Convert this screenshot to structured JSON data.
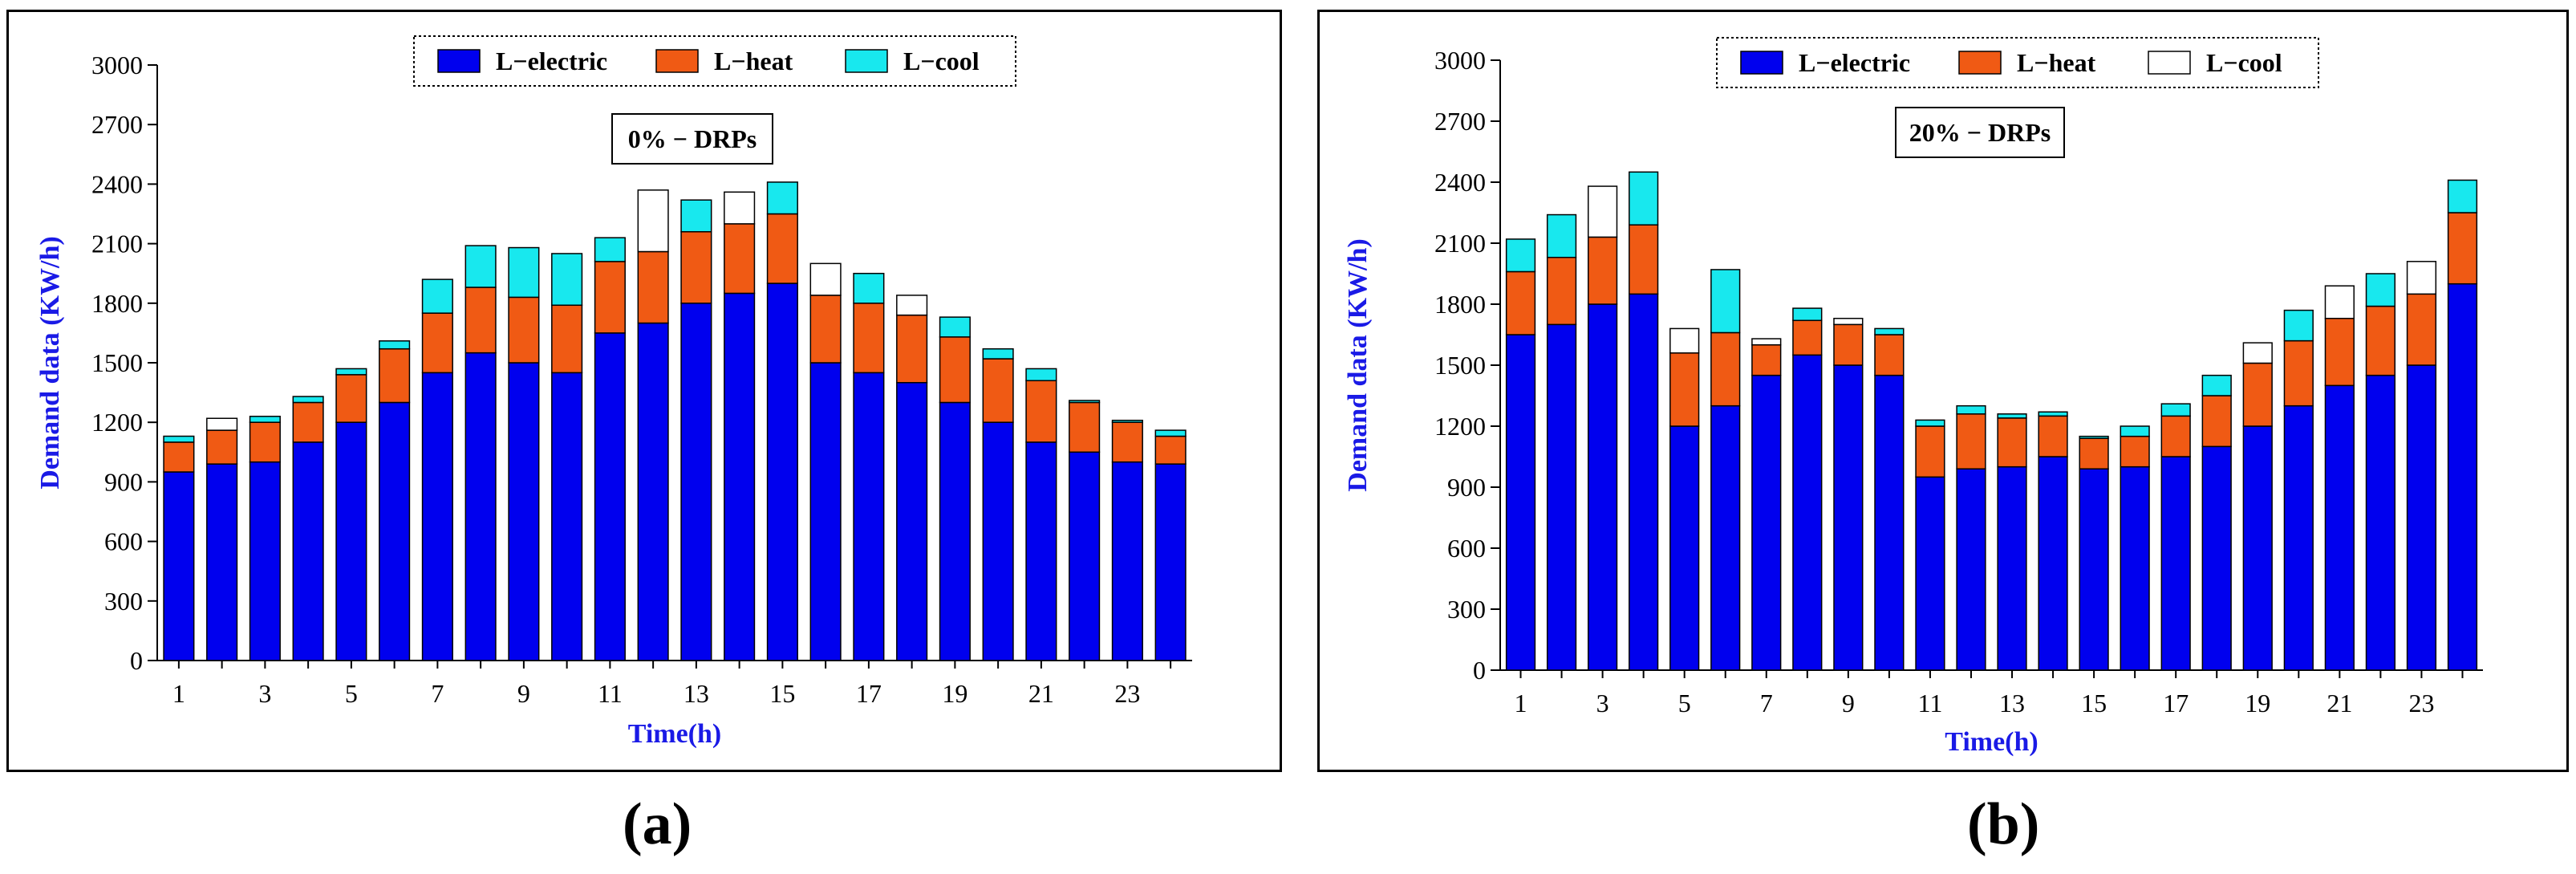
{
  "colors": {
    "electric": "#0000EE",
    "heat": "#F05A14",
    "cool": "#18E8EE",
    "cool_alt": "#FFFFFF",
    "axis_label": "#1A1AE6"
  },
  "panel_labels": [
    "(a)",
    "(b)"
  ],
  "chart_data": [
    {
      "type": "bar",
      "stacked": true,
      "scenario_label": "0% − DRPs",
      "xlabel": "Time(h)",
      "ylabel": "Demand data (KW/h)",
      "ylim": [
        0,
        3000
      ],
      "yticks": [
        0,
        300,
        600,
        900,
        1200,
        1500,
        1800,
        2100,
        2400,
        2700,
        3000
      ],
      "xticks": [
        1,
        3,
        5,
        7,
        9,
        11,
        13,
        15,
        17,
        19,
        21,
        23
      ],
      "legend": [
        "L−electric",
        "L−heat",
        "L−cool"
      ],
      "legend_position": "top-center",
      "categories": [
        1,
        2,
        3,
        4,
        5,
        6,
        7,
        8,
        9,
        10,
        11,
        12,
        13,
        14,
        15,
        16,
        17,
        18,
        19,
        20,
        21,
        22,
        23,
        24
      ],
      "series": [
        {
          "name": "L−electric",
          "values": [
            950,
            990,
            1000,
            1100,
            1200,
            1300,
            1450,
            1550,
            1500,
            1450,
            1650,
            1700,
            1800,
            1850,
            1900,
            1500,
            1450,
            1400,
            1300,
            1200,
            1100,
            1050,
            1000,
            990
          ]
        },
        {
          "name": "L−heat",
          "values": [
            150,
            170,
            200,
            200,
            240,
            270,
            300,
            330,
            330,
            340,
            360,
            360,
            360,
            350,
            350,
            340,
            350,
            340,
            330,
            320,
            310,
            250,
            200,
            140
          ]
        },
        {
          "name": "L−cool",
          "values": [
            30,
            60,
            30,
            30,
            30,
            40,
            170,
            210,
            250,
            260,
            120,
            310,
            160,
            160,
            160,
            160,
            150,
            100,
            100,
            50,
            60,
            10,
            10,
            30
          ]
        }
      ],
      "cool_style": [
        "c",
        "w",
        "c",
        "c",
        "c",
        "c",
        "c",
        "c",
        "c",
        "c",
        "c",
        "w",
        "c",
        "w",
        "c",
        "w",
        "c",
        "w",
        "c",
        "c",
        "c",
        "c",
        "c",
        "c"
      ]
    },
    {
      "type": "bar",
      "stacked": true,
      "scenario_label": "20% − DRPs",
      "xlabel": "Time(h)",
      "ylabel": "Demand data (KW/h)",
      "ylim": [
        0,
        3000
      ],
      "yticks": [
        0,
        300,
        600,
        900,
        1200,
        1500,
        1800,
        2100,
        2400,
        2700,
        3000
      ],
      "xticks": [
        1,
        3,
        5,
        7,
        9,
        11,
        13,
        15,
        17,
        19,
        21,
        23
      ],
      "legend": [
        "L−electric",
        "L−heat",
        "L−cool"
      ],
      "legend_position": "top-center",
      "categories": [
        1,
        2,
        3,
        4,
        5,
        6,
        7,
        8,
        9,
        10,
        11,
        12,
        13,
        14,
        15,
        16,
        17,
        18,
        19,
        20,
        21,
        22,
        23,
        24
      ],
      "series": [
        {
          "name": "L−electric",
          "values": [
            1650,
            1700,
            1800,
            1850,
            1200,
            1300,
            1450,
            1550,
            1500,
            1450,
            950,
            990,
            1000,
            1050,
            990,
            1000,
            1050,
            1100,
            1200,
            1300,
            1400,
            1450,
            1500,
            1900
          ]
        },
        {
          "name": "L−heat",
          "values": [
            310,
            330,
            330,
            340,
            360,
            360,
            150,
            170,
            200,
            200,
            250,
            270,
            240,
            200,
            150,
            150,
            200,
            250,
            310,
            320,
            330,
            340,
            350,
            350
          ]
        },
        {
          "name": "L−cool",
          "values": [
            160,
            210,
            250,
            260,
            120,
            310,
            30,
            60,
            30,
            30,
            30,
            40,
            20,
            20,
            10,
            50,
            60,
            100,
            100,
            150,
            160,
            160,
            160,
            160
          ]
        }
      ],
      "cool_style": [
        "c",
        "c",
        "w",
        "c",
        "w",
        "c",
        "w",
        "c",
        "w",
        "c",
        "c",
        "c",
        "c",
        "c",
        "c",
        "c",
        "c",
        "c",
        "w",
        "c",
        "w",
        "c",
        "w",
        "c"
      ]
    }
  ]
}
